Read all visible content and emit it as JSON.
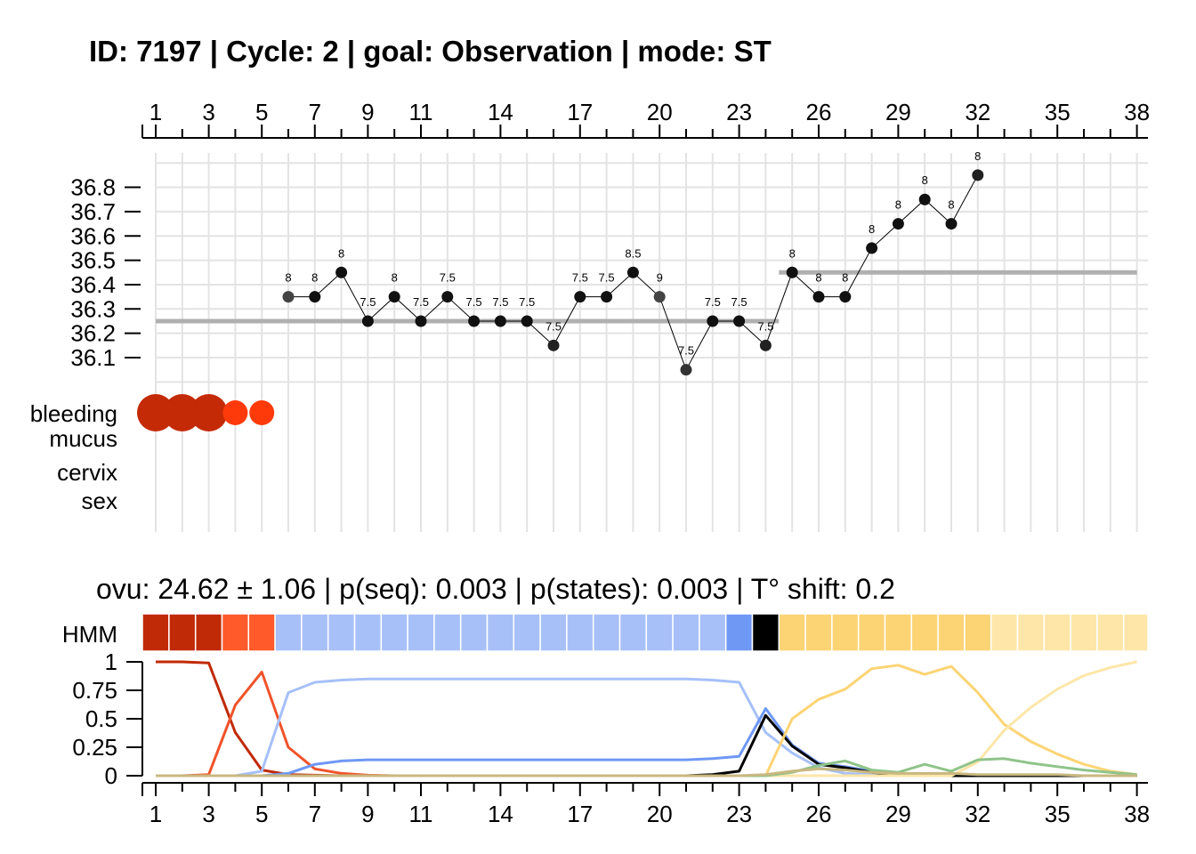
{
  "title": "ID: 7197 | Cycle: 2 | goal: Observation  |  mode: ST",
  "summary": {
    "text": "ovu:  24.62  ±  1.06   | p(seq):  0.003   | p(states):  0.003   | T° shift:  0.2",
    "ovu": 24.62,
    "ovu_sd": 1.06,
    "p_seq": 0.003,
    "p_states": 0.003,
    "t_shift": 0.2
  },
  "chart_data": [
    {
      "type": "line",
      "name": "temperature",
      "x_ticks": [
        1,
        3,
        5,
        7,
        9,
        11,
        14,
        17,
        20,
        23,
        26,
        29,
        32,
        35,
        38
      ],
      "xlim": [
        1,
        38
      ],
      "y_ticks": [
        "36.8",
        "36.7",
        "36.6",
        "36.5",
        "36.4",
        "36.3",
        "36.2",
        "36.1"
      ],
      "y_tick_values": [
        36.8,
        36.7,
        36.6,
        36.5,
        36.4,
        36.3,
        36.2,
        36.1
      ],
      "ylim": [
        36.0,
        36.95
      ],
      "grid": true,
      "points": [
        {
          "x": 6,
          "y": 36.35,
          "label": "8",
          "color": "#444444"
        },
        {
          "x": 7,
          "y": 36.35,
          "label": "8",
          "color": "#111111"
        },
        {
          "x": 8,
          "y": 36.45,
          "label": "8",
          "color": "#111111"
        },
        {
          "x": 9,
          "y": 36.25,
          "label": "7.5",
          "color": "#111111"
        },
        {
          "x": 10,
          "y": 36.35,
          "label": "8",
          "color": "#111111"
        },
        {
          "x": 11,
          "y": 36.25,
          "label": "7.5",
          "color": "#111111"
        },
        {
          "x": 12,
          "y": 36.35,
          "label": "7.5",
          "color": "#111111"
        },
        {
          "x": 13,
          "y": 36.25,
          "label": "7.5",
          "color": "#111111"
        },
        {
          "x": 14,
          "y": 36.25,
          "label": "7.5",
          "color": "#111111"
        },
        {
          "x": 15,
          "y": 36.25,
          "label": "7.5",
          "color": "#111111"
        },
        {
          "x": 16,
          "y": 36.15,
          "label": "7.5",
          "color": "#222222"
        },
        {
          "x": 17,
          "y": 36.35,
          "label": "7.5",
          "color": "#111111"
        },
        {
          "x": 18,
          "y": 36.35,
          "label": "7.5",
          "color": "#111111"
        },
        {
          "x": 19,
          "y": 36.45,
          "label": "8.5",
          "color": "#111111"
        },
        {
          "x": 20,
          "y": 36.35,
          "label": "9",
          "color": "#444444"
        },
        {
          "x": 21,
          "y": 36.05,
          "label": "7.5",
          "color": "#333333"
        },
        {
          "x": 22,
          "y": 36.25,
          "label": "7.5",
          "color": "#111111"
        },
        {
          "x": 23,
          "y": 36.25,
          "label": "7.5",
          "color": "#111111"
        },
        {
          "x": 24,
          "y": 36.15,
          "label": "7.5",
          "color": "#222222"
        },
        {
          "x": 25,
          "y": 36.45,
          "label": "8",
          "color": "#111111"
        },
        {
          "x": 26,
          "y": 36.35,
          "label": "8",
          "color": "#111111"
        },
        {
          "x": 27,
          "y": 36.35,
          "label": "8",
          "color": "#111111"
        },
        {
          "x": 28,
          "y": 36.55,
          "label": "8",
          "color": "#111111"
        },
        {
          "x": 29,
          "y": 36.65,
          "label": "8",
          "color": "#111111"
        },
        {
          "x": 30,
          "y": 36.75,
          "label": "8",
          "color": "#111111"
        },
        {
          "x": 31,
          "y": 36.65,
          "label": "8",
          "color": "#111111"
        },
        {
          "x": 32,
          "y": 36.85,
          "label": "8",
          "color": "#222222"
        }
      ],
      "reference_lines": [
        {
          "x_start": 1,
          "x_end": 24.5,
          "y": 36.25,
          "color": "#b0b0b0"
        },
        {
          "x_start": 24.5,
          "x_end": 38,
          "y": 36.45,
          "color": "#b0b0b0"
        }
      ]
    },
    {
      "type": "scatter",
      "name": "symptoms",
      "row_labels": [
        "bleeding",
        "mucus",
        "cervix",
        "sex"
      ],
      "bleeding": [
        {
          "x": 1,
          "size": 3,
          "color": "#c42a06"
        },
        {
          "x": 2,
          "size": 3,
          "color": "#c42a06"
        },
        {
          "x": 3,
          "size": 3,
          "color": "#c42a06"
        },
        {
          "x": 4,
          "size": 2,
          "color": "#ff3a0a"
        },
        {
          "x": 5,
          "size": 2,
          "color": "#ff3a0a"
        }
      ]
    },
    {
      "type": "heatmap",
      "name": "HMM",
      "row_label": "HMM",
      "x": [
        1,
        2,
        3,
        4,
        5,
        6,
        7,
        8,
        9,
        10,
        11,
        12,
        13,
        14,
        15,
        16,
        17,
        18,
        19,
        20,
        21,
        22,
        23,
        24,
        25,
        26,
        27,
        28,
        29,
        30,
        31,
        32,
        33,
        34,
        35,
        36,
        37,
        38
      ],
      "colors": [
        "#c02a06",
        "#c02a06",
        "#c02a06",
        "#ff5a2a",
        "#ff5a2a",
        "#a8c0f8",
        "#a8c0f8",
        "#a8c0f8",
        "#a8c0f8",
        "#a8c0f8",
        "#a8c0f8",
        "#a8c0f8",
        "#a8c0f8",
        "#a8c0f8",
        "#a8c0f8",
        "#a8c0f8",
        "#a8c0f8",
        "#a8c0f8",
        "#a8c0f8",
        "#a8c0f8",
        "#a8c0f8",
        "#a8c0f8",
        "#6f98f5",
        "#000000",
        "#fcd474",
        "#fcd474",
        "#fcd474",
        "#fcd474",
        "#fcd474",
        "#fcd474",
        "#fcd474",
        "#fcd474",
        "#fde6a8",
        "#fde6a8",
        "#fde6a8",
        "#fde6a8",
        "#fde6a8",
        "#fde6a8"
      ]
    },
    {
      "type": "line",
      "name": "state probabilities",
      "y_ticks": [
        "1",
        "0.75",
        "0.5",
        "0.25",
        "0"
      ],
      "y_tick_values": [
        1,
        0.75,
        0.5,
        0.25,
        0
      ],
      "ylim": [
        0,
        1
      ],
      "x_ticks": [
        1,
        3,
        5,
        7,
        9,
        11,
        14,
        17,
        20,
        23,
        26,
        29,
        32,
        35,
        38
      ],
      "xlim": [
        1,
        38
      ],
      "series": [
        {
          "color": "#c02a06",
          "values": [
            1,
            1,
            0.99,
            0.38,
            0.05,
            0.01,
            0.005,
            0,
            0,
            0,
            0,
            0,
            0,
            0,
            0,
            0,
            0,
            0,
            0,
            0,
            0,
            0,
            0,
            0,
            0,
            0,
            0,
            0,
            0,
            0,
            0,
            0,
            0,
            0,
            0,
            0,
            0,
            0
          ]
        },
        {
          "color": "#f0532a",
          "values": [
            0,
            0,
            0.01,
            0.62,
            0.91,
            0.25,
            0.06,
            0.02,
            0.005,
            0,
            0,
            0,
            0,
            0,
            0,
            0,
            0,
            0,
            0,
            0,
            0,
            0,
            0,
            0,
            0,
            0,
            0,
            0,
            0,
            0,
            0,
            0,
            0,
            0,
            0,
            0,
            0,
            0
          ]
        },
        {
          "color": "#a6c0f8",
          "values": [
            0,
            0,
            0,
            0,
            0.04,
            0.73,
            0.82,
            0.84,
            0.85,
            0.85,
            0.85,
            0.85,
            0.85,
            0.85,
            0.85,
            0.85,
            0.85,
            0.85,
            0.85,
            0.85,
            0.85,
            0.84,
            0.82,
            0.38,
            0.2,
            0.07,
            0.02,
            0.01,
            0,
            0,
            0,
            0,
            0,
            0,
            0,
            0,
            0,
            0
          ]
        },
        {
          "color": "#6f98f5",
          "values": [
            0,
            0,
            0,
            0,
            0,
            0.02,
            0.1,
            0.13,
            0.14,
            0.14,
            0.14,
            0.14,
            0.14,
            0.14,
            0.14,
            0.14,
            0.14,
            0.14,
            0.14,
            0.14,
            0.14,
            0.15,
            0.17,
            0.59,
            0.27,
            0.11,
            0.08,
            0.04,
            0.02,
            0.01,
            0,
            0,
            0,
            0,
            0,
            0,
            0,
            0
          ]
        },
        {
          "color": "#000000",
          "values": [
            0,
            0,
            0,
            0,
            0,
            0,
            0,
            0,
            0,
            0,
            0,
            0,
            0,
            0,
            0,
            0,
            0,
            0,
            0,
            0,
            0,
            0.01,
            0.04,
            0.53,
            0.26,
            0.1,
            0.07,
            0.03,
            0.01,
            0,
            0,
            0,
            0,
            0,
            0,
            0,
            0,
            0
          ]
        },
        {
          "color": "#fcd474",
          "values": [
            0,
            0,
            0,
            0,
            0,
            0,
            0,
            0,
            0,
            0,
            0,
            0,
            0,
            0,
            0,
            0,
            0,
            0,
            0,
            0,
            0,
            0,
            0,
            0,
            0.5,
            0.67,
            0.76,
            0.94,
            0.97,
            0.89,
            0.96,
            0.73,
            0.45,
            0.3,
            0.19,
            0.1,
            0.04,
            0.01
          ]
        },
        {
          "color": "#fde6a8",
          "values": [
            0,
            0,
            0,
            0,
            0,
            0,
            0,
            0,
            0,
            0,
            0,
            0,
            0,
            0,
            0,
            0,
            0,
            0,
            0,
            0,
            0,
            0,
            0,
            0,
            0,
            0,
            0,
            0,
            0,
            0,
            0,
            0.12,
            0.4,
            0.6,
            0.76,
            0.88,
            0.95,
            1
          ]
        },
        {
          "color": "#8fc48a",
          "values": [
            0,
            0,
            0,
            0,
            0,
            0,
            0,
            0,
            0,
            0,
            0,
            0,
            0,
            0,
            0,
            0,
            0,
            0,
            0,
            0,
            0,
            0,
            0,
            0,
            0.03,
            0.09,
            0.13,
            0.05,
            0.03,
            0.1,
            0.04,
            0.14,
            0.15,
            0.11,
            0.08,
            0.05,
            0.03,
            0.01
          ]
        },
        {
          "color": "#c8b880",
          "values": [
            0,
            0,
            0,
            0,
            0,
            0,
            0,
            0,
            0,
            0,
            0,
            0,
            0,
            0,
            0,
            0,
            0,
            0,
            0,
            0,
            0,
            0,
            0,
            0.01,
            0.04,
            0.06,
            0.05,
            0.03,
            0.02,
            0.02,
            0.02,
            0.01,
            0.01,
            0.01,
            0.01,
            0,
            0,
            0
          ]
        }
      ]
    }
  ]
}
